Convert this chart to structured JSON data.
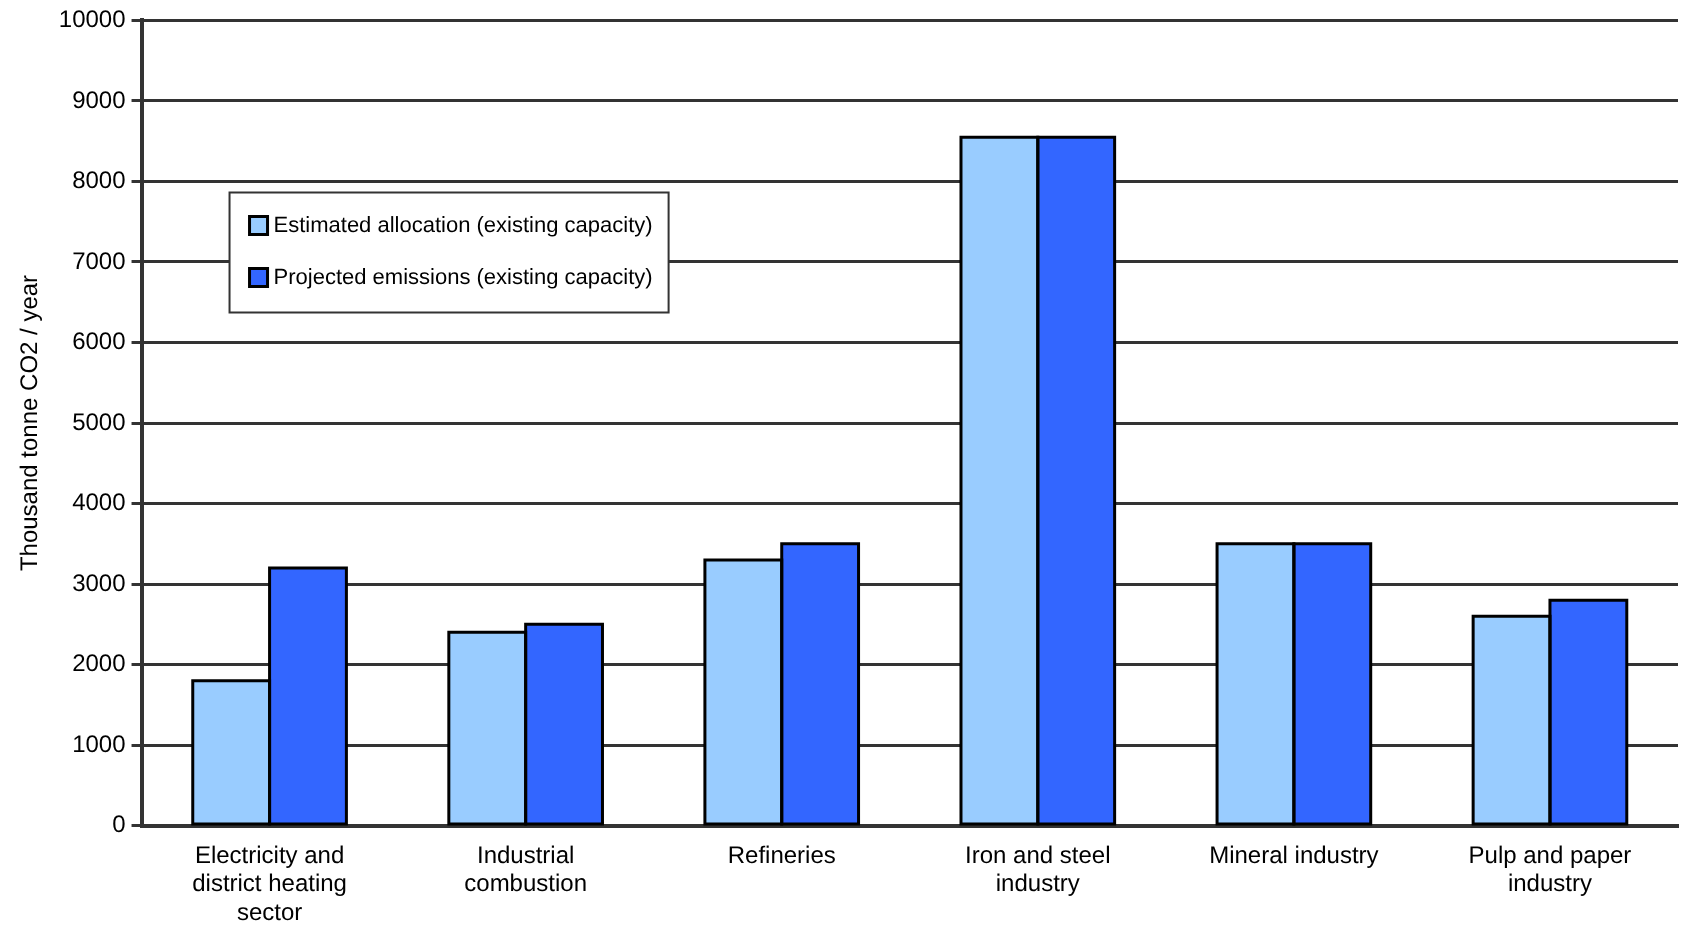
{
  "chart_data": {
    "type": "bar",
    "ylabel": "Thousand tonne CO2 / year",
    "categories": [
      "Electricity and district heating sector",
      "Industrial combustion",
      "Refineries",
      "Iron and steel industry",
      "Mineral industry",
      "Pulp and paper industry"
    ],
    "series": [
      {
        "name": "Estimated allocation (existing capacity)",
        "color": "#99ccff",
        "values": [
          1800,
          2400,
          3300,
          8550,
          3500,
          2600
        ]
      },
      {
        "name": "Projected emissions (existing capacity)",
        "color": "#3366ff",
        "values": [
          3200,
          2500,
          3500,
          8550,
          3500,
          2800
        ]
      }
    ],
    "ylim": [
      0,
      10000
    ],
    "yticks": [
      0,
      1000,
      2000,
      3000,
      4000,
      5000,
      6000,
      7000,
      8000,
      9000,
      10000
    ],
    "grid": "y",
    "legend": "top left"
  }
}
